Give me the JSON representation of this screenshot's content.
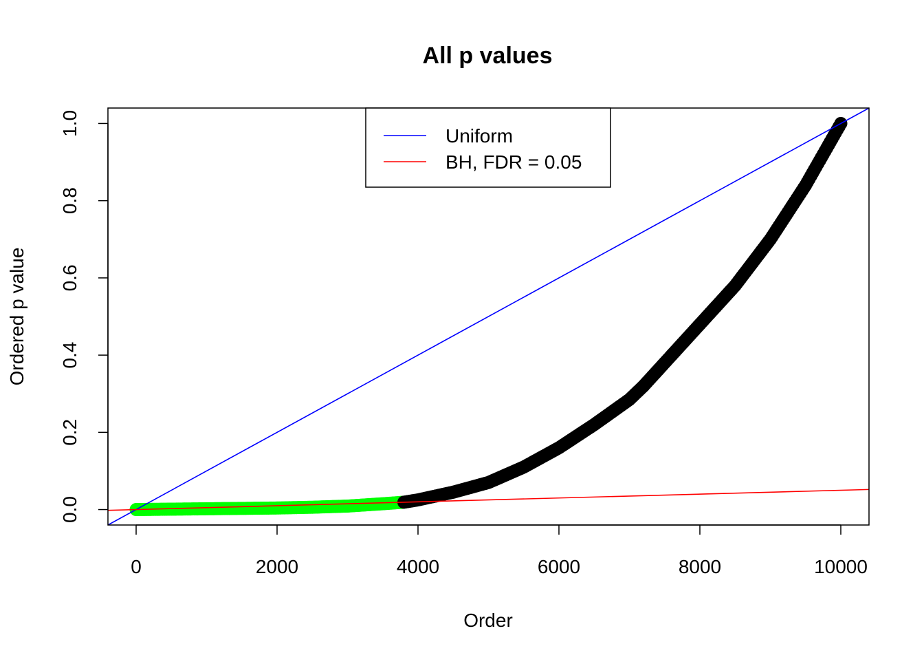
{
  "chart_data": {
    "type": "scatter",
    "title": "All p values",
    "xlabel": "Order",
    "ylabel": "Ordered p value",
    "xlim": [
      -400,
      10400
    ],
    "ylim": [
      -0.04,
      1.04
    ],
    "x_ticks": [
      0,
      2000,
      4000,
      6000,
      8000,
      10000
    ],
    "x_tick_labels": [
      "0",
      "2000",
      "4000",
      "6000",
      "8000",
      "10000"
    ],
    "y_ticks": [
      0.0,
      0.2,
      0.4,
      0.6,
      0.8,
      1.0
    ],
    "y_tick_labels": [
      "0.0",
      "0.2",
      "0.4",
      "0.6",
      "0.8",
      "1.0"
    ],
    "grid": false,
    "legend_position": "top-center",
    "legend": [
      {
        "label": "Uniform",
        "color": "#0000ff"
      },
      {
        "label": "BH, FDR = 0.05",
        "color": "#ff0000"
      }
    ],
    "lines": [
      {
        "name": "Uniform",
        "intercept": 0,
        "slope": 0.0001,
        "color": "#0000ff"
      },
      {
        "name": "BH, FDR = 0.05",
        "intercept": 0,
        "slope": 5e-06,
        "color": "#ff0000"
      }
    ],
    "series": [
      {
        "color": "#00ff00",
        "x": [
          0,
          250,
          500,
          750,
          1000,
          1250,
          1500,
          1750,
          2000,
          2250,
          2500,
          2750,
          3000,
          3250,
          3500,
          3800
        ],
        "y": [
          0.0,
          0.0005,
          0.001,
          0.0015,
          0.002,
          0.0025,
          0.003,
          0.0035,
          0.004,
          0.005,
          0.006,
          0.0075,
          0.009,
          0.012,
          0.015,
          0.019
        ]
      },
      {
        "color": "#000000",
        "x": [
          3800,
          4000,
          4500,
          5000,
          5500,
          6000,
          6500,
          7000,
          7200,
          7500,
          8000,
          8500,
          9000,
          9500,
          10000
        ],
        "y": [
          0.019,
          0.025,
          0.045,
          0.07,
          0.11,
          0.16,
          0.22,
          0.285,
          0.32,
          0.38,
          0.48,
          0.58,
          0.7,
          0.84,
          1.0
        ]
      }
    ]
  }
}
